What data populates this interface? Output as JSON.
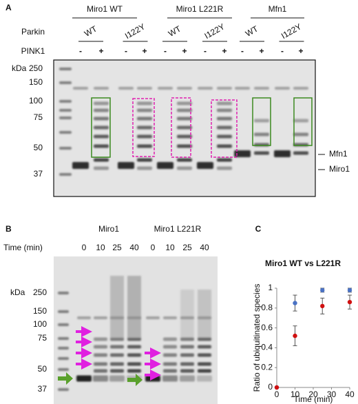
{
  "panel_a": {
    "label": "A",
    "groups": [
      "Miro1 WT",
      "Miro1 L221R",
      "Mfn1"
    ],
    "parkin_label": "Parkin",
    "parkin": [
      "WT",
      "I122Y",
      "WT",
      "I122Y",
      "WT",
      "I122Y"
    ],
    "pink1_label": "PINK1",
    "pink1": [
      "-",
      "+",
      "-",
      "+",
      "-",
      "+",
      "-",
      "+",
      "-",
      "+",
      "-",
      "+"
    ],
    "kda_label": "kDa",
    "markers": [
      250,
      150,
      100,
      75,
      50,
      37
    ],
    "band_labels": [
      "Mfn1",
      "Miro1"
    ]
  },
  "panel_b": {
    "label": "B",
    "groups": [
      "Miro1",
      "Miro1 L221R"
    ],
    "time_label": "Time (min)",
    "times": [
      0,
      10,
      25,
      40,
      0,
      10,
      25,
      40
    ],
    "kda_label": "kDa",
    "markers": [
      250,
      150,
      100,
      75,
      50,
      37
    ]
  },
  "chart_data": {
    "type": "scatter",
    "panel_label": "C",
    "title": "Miro1 WT vs L221R",
    "x_label": "Time (min)",
    "y_label": "Ratio of ubiquitinated species",
    "x": [
      0,
      10,
      25,
      40
    ],
    "series": [
      {
        "color": "#4a72c4",
        "values": [
          0,
          0.85,
          0.98,
          0.98
        ],
        "errors": [
          0,
          0.08,
          0.02,
          0.02
        ]
      },
      {
        "color": "#d01010",
        "values": [
          0,
          0.52,
          0.82,
          0.86
        ],
        "errors": [
          0,
          0.1,
          0.08,
          0.07
        ]
      }
    ],
    "xlim": [
      0,
      40
    ],
    "ylim": [
      0,
      1
    ],
    "xticks": [
      0,
      10,
      20,
      30,
      40
    ],
    "yticks": [
      0,
      0.2,
      0.4,
      0.6,
      0.8,
      1
    ]
  }
}
